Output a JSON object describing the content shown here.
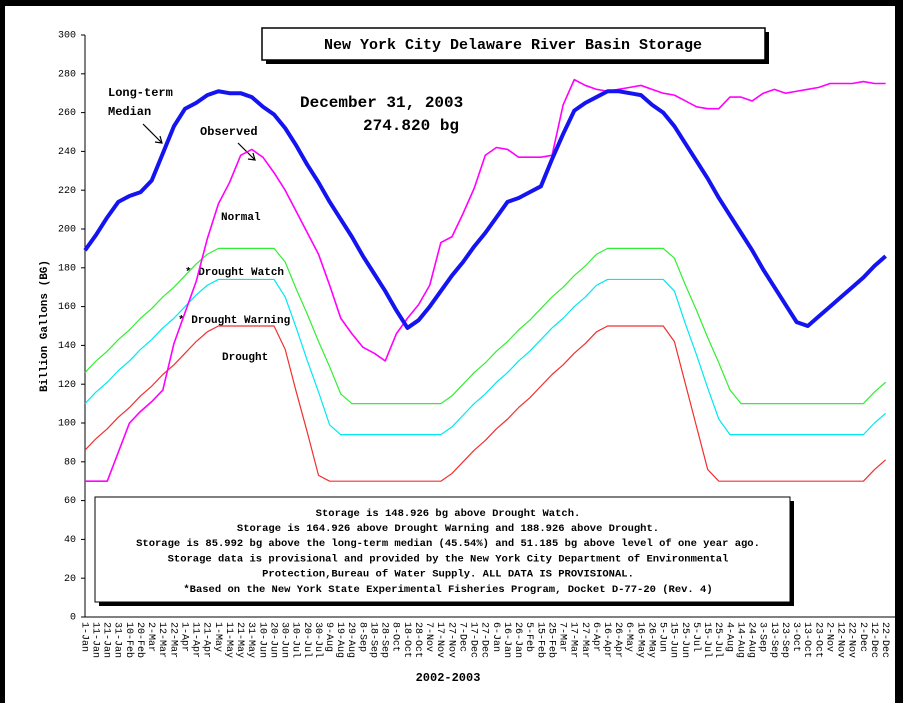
{
  "chart_data": {
    "type": "line",
    "title": "New York City Delaware River Basin Storage",
    "ylabel": "Billion Gallons (BG)",
    "xlabel": "2002-2003",
    "annotations": [
      "December 31, 2003",
      "274.820 bg",
      "Normal"
    ],
    "notes": [
      "Storage is 148.926 bg above Drought Watch.",
      "Storage is 164.926 above Drought Warning and 188.926 above Drought.",
      "Storage is 85.992 bg above the long-term median (45.54%) and 51.185 bg above level of one year ago.",
      "Storage data is provisional and provided by the New York City Department of Environmental",
      "Protection,Bureau of Water Supply.  ALL DATA IS PROVISIONAL.",
      "*Based on the New York State Experimental Fisheries Program, Docket D-77-20 (Rev. 4)"
    ],
    "categories": [
      "1-Jan",
      "11-Jan",
      "21-Jan",
      "31-Jan",
      "10-Feb",
      "20-Feb",
      "2-Mar",
      "12-Mar",
      "22-Mar",
      "1-Apr",
      "11-Apr",
      "21-Apr",
      "1-May",
      "11-May",
      "21-May",
      "31-May",
      "10-Jun",
      "20-Jun",
      "30-Jun",
      "10-Jul",
      "20-Jul",
      "30-Jul",
      "9-Aug",
      "19-Aug",
      "29-Aug",
      "8-Sep",
      "18-Sep",
      "28-Sep",
      "8-Oct",
      "18-Oct",
      "28-Oct",
      "7-Nov",
      "17-Nov",
      "27-Nov",
      "7-Dec",
      "17-Dec",
      "27-Dec",
      "6-Jan",
      "16-Jan",
      "26-Jan",
      "5-Feb",
      "15-Feb",
      "25-Feb",
      "7-Mar",
      "17-Mar",
      "27-Mar",
      "6-Apr",
      "16-Apr",
      "26-Apr",
      "6-May",
      "16-May",
      "26-May",
      "5-Jun",
      "15-Jun",
      "25-Jun",
      "5-Jul",
      "15-Jul",
      "25-Jul",
      "4-Aug",
      "14-Aug",
      "24-Aug",
      "3-Sep",
      "13-Sep",
      "23-Sep",
      "3-Oct",
      "13-Oct",
      "23-Oct",
      "2-Nov",
      "12-Nov",
      "22-Nov",
      "2-Dec",
      "12-Dec",
      "22-Dec"
    ],
    "series": [
      {
        "name": "Long-term Median",
        "color": "#1414f0",
        "width": 4,
        "values": [
          189,
          197,
          206,
          214,
          217,
          219,
          225,
          239,
          253,
          262,
          265,
          269,
          271,
          270,
          270,
          268,
          263,
          259,
          252,
          243,
          233,
          224,
          214,
          205,
          196,
          186,
          177,
          168,
          158,
          149,
          153,
          160,
          168,
          176,
          183,
          191,
          198,
          206,
          214,
          216,
          219,
          222,
          236,
          249,
          261,
          265,
          268,
          271,
          271,
          270,
          269,
          264,
          260,
          253,
          244,
          235,
          226,
          216,
          207,
          198,
          189,
          179,
          170,
          161,
          152,
          150,
          155,
          160,
          165,
          170,
          175,
          181,
          186
        ]
      },
      {
        "name": "Observed",
        "color": "#ff00ff",
        "width": 1.6,
        "values": [
          70,
          70,
          70,
          85,
          100,
          106,
          111,
          117,
          141,
          157,
          173,
          195,
          213,
          224,
          238,
          241,
          237,
          229,
          220,
          209,
          198,
          187,
          171,
          154,
          146,
          139,
          136,
          132,
          146,
          154,
          161,
          171,
          193,
          196,
          208,
          221,
          238,
          242,
          241,
          237,
          237,
          237,
          238,
          264,
          277,
          274,
          272,
          271,
          272,
          273,
          274,
          272,
          270,
          269,
          266,
          263,
          262,
          262,
          268,
          268,
          266,
          270,
          272,
          270,
          271,
          272,
          273,
          275,
          275,
          275,
          276,
          275,
          275
        ]
      },
      {
        "name": "* Drought Watch",
        "color": "#33ee33",
        "width": 1.2,
        "values": [
          126,
          132,
          137,
          143,
          148,
          154,
          159,
          165,
          170,
          176,
          182,
          187,
          190,
          190,
          190,
          190,
          190,
          190,
          183,
          169,
          156,
          142,
          129,
          115,
          110,
          110,
          110,
          110,
          110,
          110,
          110,
          110,
          110,
          114,
          120,
          126,
          131,
          137,
          142,
          148,
          153,
          159,
          165,
          170,
          176,
          181,
          187,
          190,
          190,
          190,
          190,
          190,
          190,
          185,
          171,
          158,
          144,
          131,
          117,
          110,
          110,
          110,
          110,
          110,
          110,
          110,
          110,
          110,
          110,
          110,
          110,
          116,
          121
        ]
      },
      {
        "name": "* Drought Warning",
        "color": "#00e8f0",
        "width": 1.2,
        "values": [
          110,
          116,
          121,
          127,
          132,
          138,
          143,
          149,
          154,
          160,
          166,
          171,
          174,
          174,
          174,
          174,
          174,
          174,
          165,
          149,
          132,
          116,
          99,
          94,
          94,
          94,
          94,
          94,
          94,
          94,
          94,
          94,
          94,
          98,
          104,
          110,
          115,
          121,
          126,
          132,
          137,
          143,
          149,
          154,
          160,
          165,
          171,
          174,
          174,
          174,
          174,
          174,
          174,
          168,
          151,
          135,
          118,
          102,
          94,
          94,
          94,
          94,
          94,
          94,
          94,
          94,
          94,
          94,
          94,
          94,
          94,
          100,
          105
        ]
      },
      {
        "name": "Drought",
        "color": "#f03030",
        "width": 1.2,
        "values": [
          86,
          92,
          97,
          103,
          108,
          114,
          119,
          125,
          130,
          136,
          142,
          147,
          150,
          150,
          150,
          150,
          150,
          150,
          138,
          116,
          95,
          73,
          70,
          70,
          70,
          70,
          70,
          70,
          70,
          70,
          70,
          70,
          70,
          74,
          80,
          86,
          91,
          97,
          102,
          108,
          113,
          119,
          125,
          130,
          136,
          141,
          147,
          150,
          150,
          150,
          150,
          150,
          150,
          142,
          120,
          98,
          76,
          70,
          70,
          70,
          70,
          70,
          70,
          70,
          70,
          70,
          70,
          70,
          70,
          70,
          70,
          76,
          81
        ]
      }
    ],
    "ylim": [
      0,
      300
    ],
    "yticks": [
      0,
      20,
      40,
      60,
      80,
      100,
      120,
      140,
      160,
      180,
      200,
      220,
      240,
      260,
      280,
      300
    ]
  }
}
